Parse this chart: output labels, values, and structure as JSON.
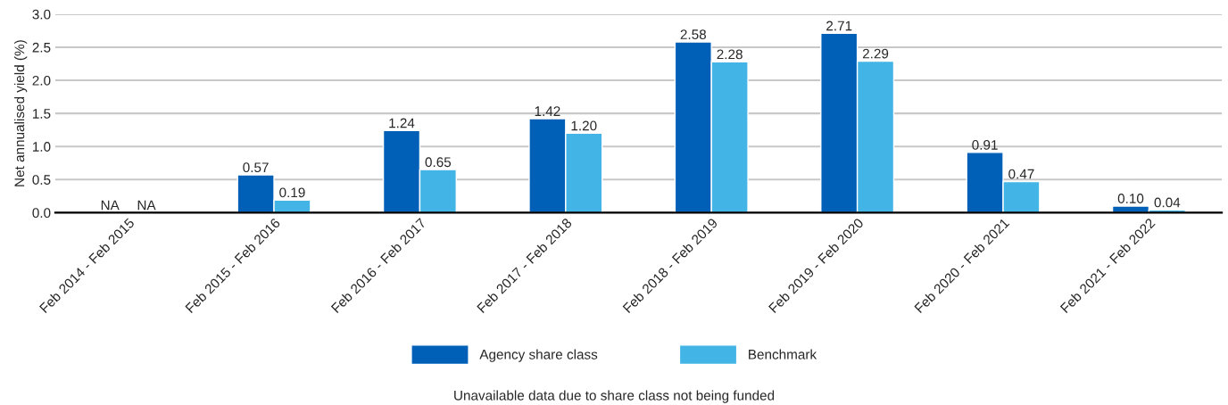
{
  "chart_data": {
    "type": "bar",
    "categories": [
      "Feb 2014 - Feb 2015",
      "Feb 2015 - Feb 2016",
      "Feb 2016 - Feb 2017",
      "Feb 2017 - Feb 2018",
      "Feb 2018 - Feb 2019",
      "Feb 2019 - Feb 2020",
      "Feb 2020 - Feb 2021",
      "Feb 2021 - Feb 2022"
    ],
    "series": [
      {
        "name": "Agency share class",
        "color": "#0060b8",
        "values": [
          null,
          0.57,
          1.24,
          1.42,
          2.58,
          2.71,
          0.91,
          0.1
        ],
        "value_labels": [
          "NA",
          "0.57",
          "1.24",
          "1.42",
          "2.58",
          "2.71",
          "0.91",
          "0.10"
        ]
      },
      {
        "name": "Benchmark",
        "color": "#42b4e6",
        "values": [
          null,
          0.19,
          0.65,
          1.2,
          2.28,
          2.29,
          0.47,
          0.04
        ],
        "value_labels": [
          "NA",
          "0.19",
          "0.65",
          "1.20",
          "2.28",
          "2.29",
          "0.47",
          "0.04"
        ]
      }
    ],
    "ylabel": "Net annualised yield (%)",
    "ylim": [
      0,
      3.0
    ],
    "yticks": [
      {
        "value": 0,
        "label": "0.0"
      },
      {
        "value": 0.5,
        "label": "0.5"
      },
      {
        "value": 1.0,
        "label": "1.0"
      },
      {
        "value": 1.5,
        "label": "1.5"
      },
      {
        "value": 2.0,
        "label": "2.0"
      },
      {
        "value": 2.5,
        "label": "2.5"
      },
      {
        "value": 3.0,
        "label": "3.0"
      }
    ],
    "grid": "y",
    "legend": "bottom",
    "annotations": [
      "Unavailable data due to share class not being funded"
    ]
  }
}
